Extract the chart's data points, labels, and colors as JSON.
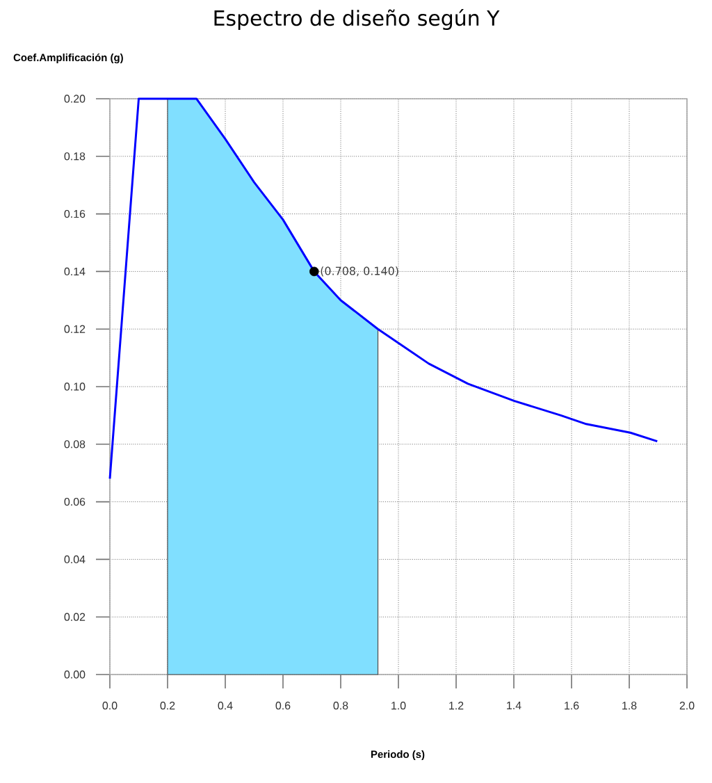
{
  "chart_data": {
    "type": "line",
    "title": "Espectro de diseño según Y",
    "xlabel": "Periodo (s)",
    "ylabel": "Coef.Amplificación (g)",
    "series": [
      {
        "type": "area",
        "color": "#80dfff",
        "x": [
          0.2,
          0.3,
          0.4,
          0.5,
          0.6,
          0.708,
          0.8,
          0.929
        ],
        "values": [
          0.2,
          0.2,
          0.186,
          0.171,
          0.158,
          0.14,
          0.13,
          0.12
        ]
      },
      {
        "color": "#0000ff",
        "x": [
          0,
          0.1,
          0.3,
          0.4,
          0.5,
          0.6,
          0.708,
          0.8,
          0.929,
          1.105,
          1.241,
          1.402,
          1.563,
          1.651,
          1.804,
          1.897
        ],
        "values": [
          0.068,
          0.2,
          0.2,
          0.186,
          0.171,
          0.158,
          0.14,
          0.13,
          0.12,
          0.108,
          0.101,
          0.095,
          0.09,
          0.087,
          0.084,
          0.081
        ]
      },
      {
        "type": "scatter",
        "color": "#000000",
        "x": [
          0.708
        ],
        "values": [
          0.14
        ]
      }
    ],
    "annotations": [
      {
        "text": "(0.708, 0.140)",
        "x": 0.708,
        "y": 0.14
      }
    ],
    "xlim": [
      0,
      2
    ],
    "ylim": [
      0,
      0.2
    ],
    "xticks": [
      {
        "value": 0,
        "label": "0.0"
      },
      {
        "value": 0.2,
        "label": "0.2"
      },
      {
        "value": 0.4,
        "label": "0.4"
      },
      {
        "value": 0.6,
        "label": "0.6"
      },
      {
        "value": 0.8,
        "label": "0.8"
      },
      {
        "value": 1,
        "label": "1.0"
      },
      {
        "value": 1.2,
        "label": "1.2"
      },
      {
        "value": 1.4,
        "label": "1.4"
      },
      {
        "value": 1.6,
        "label": "1.6"
      },
      {
        "value": 1.8,
        "label": "1.8"
      },
      {
        "value": 2,
        "label": "2.0"
      }
    ],
    "yticks": [
      {
        "value": 0,
        "label": "0.00"
      },
      {
        "value": 0.02,
        "label": "0.02"
      },
      {
        "value": 0.04,
        "label": "0.04"
      },
      {
        "value": 0.06,
        "label": "0.06"
      },
      {
        "value": 0.08,
        "label": "0.08"
      },
      {
        "value": 0.1,
        "label": "0.10"
      },
      {
        "value": 0.12,
        "label": "0.12"
      },
      {
        "value": 0.14,
        "label": "0.14"
      },
      {
        "value": 0.16,
        "label": "0.16"
      },
      {
        "value": 0.18,
        "label": "0.18"
      },
      {
        "value": 0.2,
        "label": "0.20"
      }
    ],
    "grid": true
  }
}
